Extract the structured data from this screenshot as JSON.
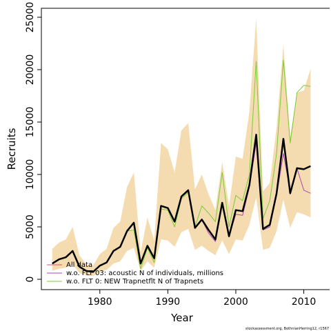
{
  "chart_data": {
    "type": "line",
    "x_label": "Year",
    "y_label": "Recruits",
    "footnote": "stockassessment.org, BothnianHerring12, r1567",
    "x": [
      1973,
      1974,
      1975,
      1976,
      1977,
      1978,
      1979,
      1980,
      1981,
      1982,
      1983,
      1984,
      1985,
      1986,
      1987,
      1988,
      1989,
      1990,
      1991,
      1992,
      1993,
      1994,
      1995,
      1996,
      1997,
      1998,
      1999,
      2000,
      2001,
      2002,
      2003,
      2004,
      2005,
      2006,
      2007,
      2008,
      2009,
      2010,
      2011
    ],
    "xlim": [
      1971.4,
      2013.8
    ],
    "xticks": [
      1980,
      1990,
      2000,
      2010
    ],
    "ylim": [
      -987,
      25855
    ],
    "yticks": [
      0,
      5000,
      10000,
      15000,
      20000,
      25000
    ],
    "legend_position": "bottom-left",
    "band": {
      "color": "#f5dcb0",
      "upper": [
        2900,
        3500,
        3800,
        5000,
        2300,
        1400,
        1300,
        2400,
        2900,
        4900,
        5500,
        8800,
        10200,
        2600,
        5900,
        3700,
        13000,
        12400,
        10200,
        14200,
        14900,
        8600,
        10000,
        8100,
        6600,
        11200,
        7000,
        11700,
        11500,
        16000,
        24900,
        8400,
        9200,
        14500,
        22400,
        13500,
        17800,
        18000,
        20100
      ],
      "lower": [
        800,
        1000,
        1100,
        1400,
        600,
        400,
        300,
        700,
        900,
        1500,
        1700,
        2700,
        3000,
        800,
        1700,
        1100,
        3800,
        3700,
        3100,
        4500,
        4800,
        2800,
        3200,
        2700,
        2300,
        3700,
        2400,
        3800,
        3700,
        5200,
        7800,
        2800,
        3000,
        4600,
        7600,
        4900,
        6400,
        6200,
        5900
      ]
    },
    "series": [
      {
        "name": "All data",
        "color": "#000000",
        "legend_color": "#e8506a",
        "width": 2.5,
        "values": [
          1500,
          1900,
          2100,
          2700,
          1200,
          800,
          700,
          1300,
          1600,
          2700,
          3100,
          4600,
          5400,
          1500,
          3200,
          2000,
          7000,
          6800,
          5500,
          7900,
          8500,
          4900,
          5700,
          4700,
          3800,
          7300,
          4100,
          6600,
          6500,
          9000,
          13800,
          4800,
          5200,
          8200,
          13400,
          8200,
          10600,
          10500,
          10800
        ]
      },
      {
        "name": "w.o. FLT 03:   acoustic   N of individuals, millions",
        "color": "#aa44bb",
        "width": 1,
        "values": [
          1500,
          1900,
          2100,
          2700,
          1200,
          800,
          700,
          1300,
          1600,
          2700,
          3100,
          4600,
          5400,
          1500,
          3200,
          2000,
          7000,
          6800,
          5500,
          7900,
          8500,
          4900,
          5700,
          4400,
          3600,
          7300,
          4100,
          6200,
          6100,
          8800,
          13000,
          4700,
          5000,
          8000,
          12000,
          8400,
          10600,
          8500,
          8200
        ]
      },
      {
        "name": "w.o. FLT 0: NEW Trapnetflt    N of Trapnets",
        "color": "#77cc33",
        "width": 1,
        "values": [
          1500,
          1900,
          2100,
          2700,
          1200,
          800,
          700,
          1300,
          1600,
          2700,
          3100,
          4600,
          4700,
          1000,
          3000,
          1600,
          6700,
          6600,
          5000,
          7700,
          8300,
          5000,
          7000,
          6300,
          5500,
          10200,
          5000,
          8000,
          7500,
          10000,
          20800,
          5800,
          7500,
          12000,
          20900,
          13000,
          17800,
          18500,
          18400
        ]
      }
    ]
  }
}
